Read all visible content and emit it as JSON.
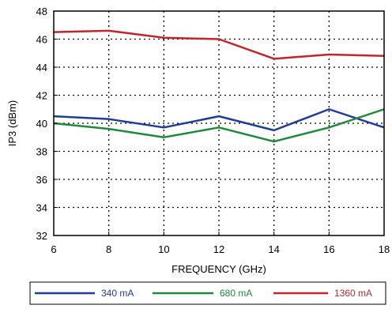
{
  "chart_data": {
    "type": "line",
    "xlabel": "FREQUENCY (GHz)",
    "ylabel": "IP3 (dBm)",
    "xlim": [
      6,
      18
    ],
    "ylim": [
      32,
      48
    ],
    "xticks": [
      6,
      8,
      10,
      12,
      14,
      16,
      18
    ],
    "yticks": [
      32,
      34,
      36,
      38,
      40,
      42,
      44,
      46,
      48
    ],
    "grid": "dotted",
    "legend_position": "bottom",
    "x": [
      6,
      8,
      10,
      12,
      14,
      16,
      18
    ],
    "series": [
      {
        "name": "340 mA",
        "color": "#1f3c99",
        "values": [
          40.5,
          40.3,
          39.7,
          40.5,
          39.5,
          41.0,
          39.7
        ]
      },
      {
        "name": "680 mA",
        "color": "#1e8a3c",
        "values": [
          40.0,
          39.6,
          39.0,
          39.7,
          38.7,
          39.7,
          41.0
        ]
      },
      {
        "name": "1360 mA",
        "color": "#c0272d",
        "values": [
          46.5,
          46.6,
          46.1,
          46.0,
          44.6,
          44.9,
          44.8
        ]
      }
    ]
  }
}
